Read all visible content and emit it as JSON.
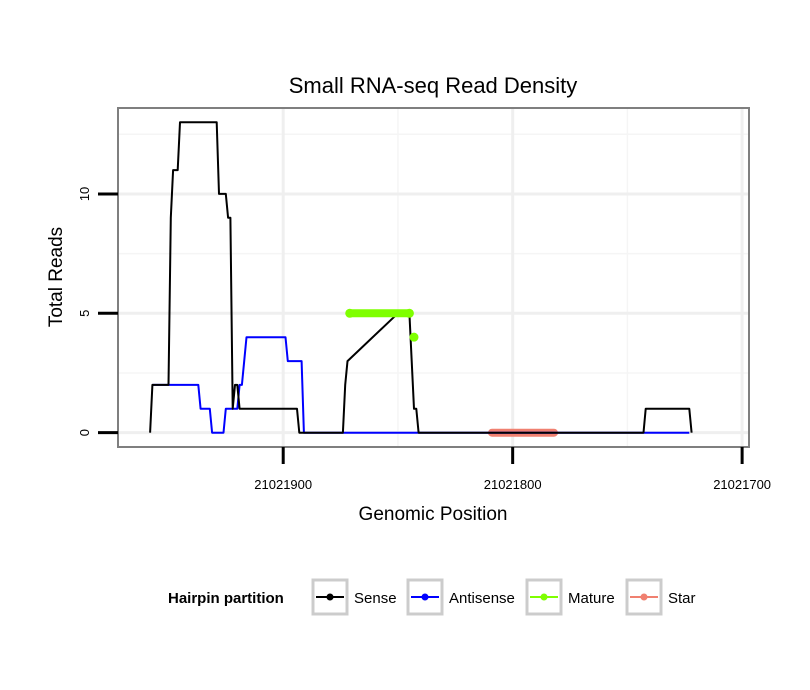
{
  "chart_data": {
    "type": "line",
    "title": "Small RNA-seq Read Density",
    "xlabel": "Genomic Position",
    "ylabel": "Total Reads",
    "x_reversed": true,
    "xlim": [
      21021972,
      21021697
    ],
    "ylim": [
      -0.6,
      13.6
    ],
    "x_ticks": [
      21021900,
      21021800,
      21021700
    ],
    "x_tick_labels": [
      "21021900",
      "21021800",
      "21021700"
    ],
    "y_ticks": [
      0,
      5,
      10
    ],
    "y_tick_labels": [
      "0",
      "5",
      "10"
    ],
    "grid": true,
    "legend": {
      "title": "Hairpin partition",
      "position": "bottom",
      "entries": [
        {
          "name": "Sense",
          "color": "#000000"
        },
        {
          "name": "Antisense",
          "color": "#0000ff"
        },
        {
          "name": "Mature",
          "color": "#7fff00"
        },
        {
          "name": "Star",
          "color": "#f08070"
        }
      ]
    },
    "series": [
      {
        "name": "Sense",
        "color": "#000000",
        "style": "line",
        "x": [
          21021958,
          21021957,
          21021956,
          21021950,
          21021949,
          21021948,
          21021946,
          21021945,
          21021943,
          21021929,
          21021928,
          21021927,
          21021925,
          21021924,
          21021923,
          21021922,
          21021921,
          21021920,
          21021919,
          21021918,
          21021917,
          21021916,
          21021915,
          21021914,
          21021895,
          21021894,
          21021893,
          21021875,
          21021874,
          21021873,
          21021872,
          21021850,
          21021849,
          21021848,
          21021847,
          21021846,
          21021845,
          21021844,
          21021843,
          21021842,
          21021841,
          21021840,
          21021812,
          21021811,
          21021782,
          21021781,
          21021780,
          21021771,
          21021770,
          21021769,
          21021768,
          21021762,
          21021744,
          21021743,
          21021742,
          21021725,
          21021724,
          21021723,
          21021722
        ],
        "y": [
          0,
          2,
          2,
          2,
          9,
          11,
          11,
          13,
          13,
          13,
          10,
          10,
          10,
          9,
          9,
          1,
          2,
          2,
          1,
          1,
          1,
          1,
          1,
          1,
          1,
          1,
          0,
          0,
          0,
          2,
          3,
          5,
          5,
          5,
          5,
          5,
          5,
          3,
          1,
          1,
          0,
          0,
          0,
          0,
          0,
          0,
          0,
          0,
          0,
          0,
          0,
          0,
          0,
          0,
          1,
          1,
          1,
          1,
          0
        ]
      },
      {
        "name": "Antisense",
        "color": "#0000ff",
        "style": "line",
        "x": [
          21021957,
          21021937,
          21021936,
          21021932,
          21021931,
          21021926,
          21021925,
          21021920,
          21021919,
          21021918,
          21021917,
          21021916,
          21021915,
          21021899,
          21021898,
          21021892,
          21021891,
          21021875,
          21021724,
          21021723
        ],
        "y": [
          2,
          2,
          1,
          1,
          0,
          0,
          1,
          1,
          2,
          2,
          3,
          4,
          4,
          4,
          3,
          3,
          0,
          0,
          0,
          0
        ]
      },
      {
        "name": "Mature",
        "color": "#7fff00",
        "style": "thick",
        "x": [
          21021871,
          21021845
        ],
        "y": [
          5,
          5
        ],
        "points": [
          {
            "x": 21021871,
            "y": 5
          },
          {
            "x": 21021845,
            "y": 5
          },
          {
            "x": 21021843,
            "y": 4
          }
        ]
      },
      {
        "name": "Star",
        "color": "#f08070",
        "style": "thick",
        "x": [
          21021809,
          21021782
        ],
        "y": [
          0,
          0
        ]
      }
    ]
  }
}
